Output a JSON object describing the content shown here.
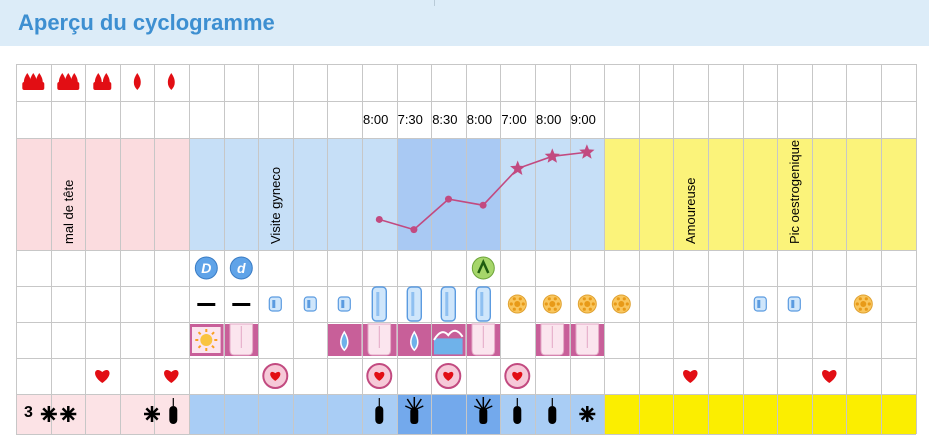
{
  "header": {
    "title": "Aperçu du cyclogramme"
  },
  "cycle": {
    "day_label": "3"
  },
  "icons": {
    "blood": "blood-drop-icon",
    "asterisk": "asterisk-icon",
    "tampon": "tampon-icon",
    "heart": "heart-icon",
    "circled_heart": "circled-heart-icon",
    "star": "star-icon"
  },
  "colors": {
    "period": "#fbdcdf",
    "infertile": "#c6dff7",
    "fertile": "#a9c9f3",
    "post": "#fbf37a",
    "temp_line": "#c24a80",
    "bar_period": "#fce3e6",
    "bar_blue": "#a9cdf5",
    "bar_dark": "#73a9ec",
    "bar_yellow": "#fbee00",
    "mucus": "#c85f99",
    "heart": "#e20e14"
  },
  "days": [
    {
      "bleeding": "heavy",
      "bg": "period",
      "bar": "period",
      "symbols": [
        "asterisk"
      ],
      "bottom_text": "3"
    },
    {
      "bleeding": "heavy",
      "bg": "period",
      "bar": "period",
      "note": "mal de tête",
      "symbols": [
        "asterisk"
      ]
    },
    {
      "bleeding": "medium",
      "bg": "period",
      "bar": "period",
      "intercourse": "heart"
    },
    {
      "bleeding": "light",
      "bg": "period",
      "bar": "period"
    },
    {
      "bleeding": "light",
      "bg": "period",
      "bar": "period",
      "intercourse": "heart",
      "symbols": [
        "asterisk",
        "tampon"
      ]
    },
    {
      "bg": "infertile",
      "bar": "blue",
      "test": "D",
      "cervix": "dash",
      "mucus": "sun-pattern"
    },
    {
      "bg": "infertile",
      "bar": "blue",
      "test": "d",
      "cervix": "dash",
      "mucus": "tooth"
    },
    {
      "bg": "infertile",
      "bar": "blue",
      "note": "Visite gyneco",
      "cervix": "small-pill",
      "intercourse": "circled-heart"
    },
    {
      "bg": "infertile",
      "bar": "blue",
      "cervix": "small-pill"
    },
    {
      "bg": "infertile",
      "bar": "blue",
      "cervix": "small-pill",
      "mucus": "drop"
    },
    {
      "bg": "infertile",
      "bar": "blue",
      "time": "8:00",
      "temp": 36.35,
      "cervix": "tall-pill",
      "mucus": "tooth",
      "intercourse": "circled-heart",
      "symbols": [
        "tampon"
      ]
    },
    {
      "bg": "fertile",
      "bar": "dark",
      "time": "7:30",
      "temp": 36.3,
      "cervix": "tall-pill",
      "mucus": "drop",
      "symbols": [
        "sparkle"
      ]
    },
    {
      "bg": "fertile",
      "bar": "dark",
      "time": "8:30",
      "temp": 36.45,
      "cervix": "tall-pill",
      "mucus": "wave",
      "intercourse": "circled-heart"
    },
    {
      "bg": "fertile",
      "bar": "dark",
      "time": "8:00",
      "temp": 36.42,
      "test": "peak",
      "cervix": "tall-pill",
      "mucus": "tooth",
      "symbols": [
        "sparkle"
      ]
    },
    {
      "bg": "infertile",
      "bar": "blue",
      "time": "7:00",
      "temp": 36.6,
      "temp_marker": "star",
      "cervix": "flower",
      "intercourse": "circled-heart",
      "symbols": [
        "tampon"
      ]
    },
    {
      "bg": "infertile",
      "bar": "blue",
      "time": "8:00",
      "temp": 36.66,
      "temp_marker": "star",
      "cervix": "flower",
      "mucus": "tooth",
      "symbols": [
        "tampon"
      ]
    },
    {
      "bg": "infertile",
      "bar": "blue",
      "time": "9:00",
      "temp": 36.68,
      "temp_marker": "star",
      "cervix": "flower",
      "mucus": "tooth",
      "symbols": [
        "asterisk"
      ]
    },
    {
      "bg": "post",
      "bar": "yellow",
      "cervix": "flower"
    },
    {
      "bg": "post",
      "bar": "yellow"
    },
    {
      "bg": "post",
      "bar": "yellow",
      "note": "Amoureuse",
      "intercourse": "heart"
    },
    {
      "bg": "post",
      "bar": "yellow"
    },
    {
      "bg": "post",
      "bar": "yellow",
      "cervix": "small-pill"
    },
    {
      "bg": "post",
      "bar": "yellow",
      "cervix": "small-pill",
      "note": "Pic oestrogenique"
    },
    {
      "bg": "post",
      "bar": "yellow",
      "intercourse": "heart"
    },
    {
      "bg": "post",
      "bar": "yellow",
      "cervix": "flower"
    },
    {
      "bg": "post",
      "bar": "yellow"
    }
  ]
}
